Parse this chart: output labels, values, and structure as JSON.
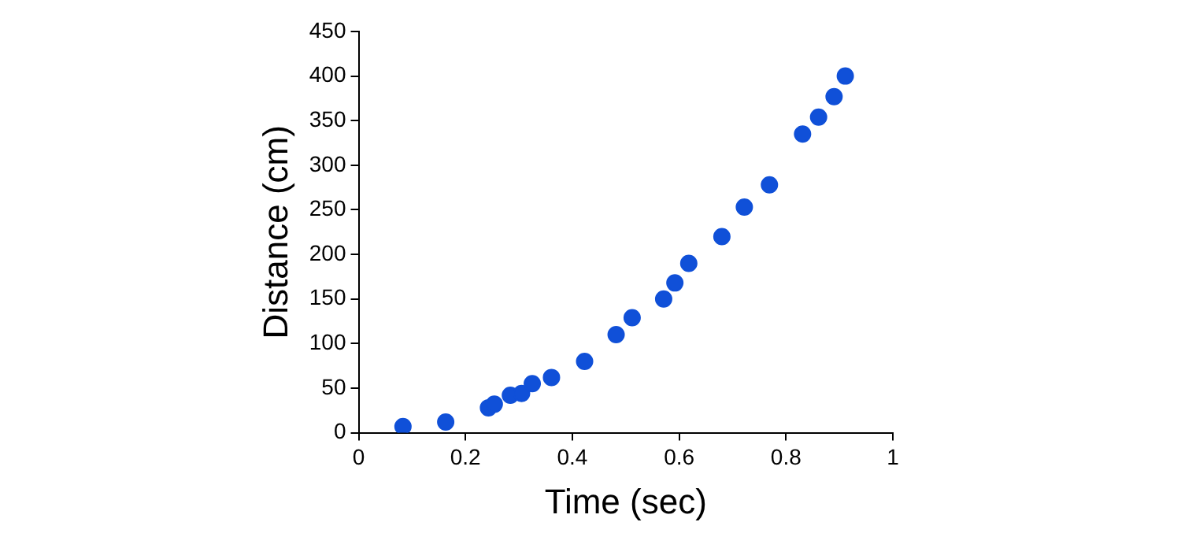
{
  "chart_data": {
    "type": "scatter",
    "xlabel": "Time (sec)",
    "ylabel": "Distance (cm)",
    "x": [
      0.083,
      0.163,
      0.243,
      0.254,
      0.284,
      0.305,
      0.325,
      0.361,
      0.423,
      0.482,
      0.512,
      0.571,
      0.592,
      0.618,
      0.68,
      0.722,
      0.769,
      0.831,
      0.861,
      0.89,
      0.911
    ],
    "values": [
      7,
      12,
      28,
      32,
      42,
      44,
      55,
      62,
      80,
      110,
      129,
      150,
      168,
      190,
      220,
      253,
      278,
      335,
      354,
      377,
      400
    ],
    "color": "#1050d8",
    "marker": "circle",
    "grid": false,
    "xlim": [
      0,
      1
    ],
    "xticks": [
      0,
      0.2,
      0.4,
      0.6,
      0.8,
      1
    ],
    "ylim": [
      0,
      450
    ],
    "yticks": [
      0,
      50,
      100,
      150,
      200,
      250,
      300,
      350,
      400,
      450
    ]
  }
}
